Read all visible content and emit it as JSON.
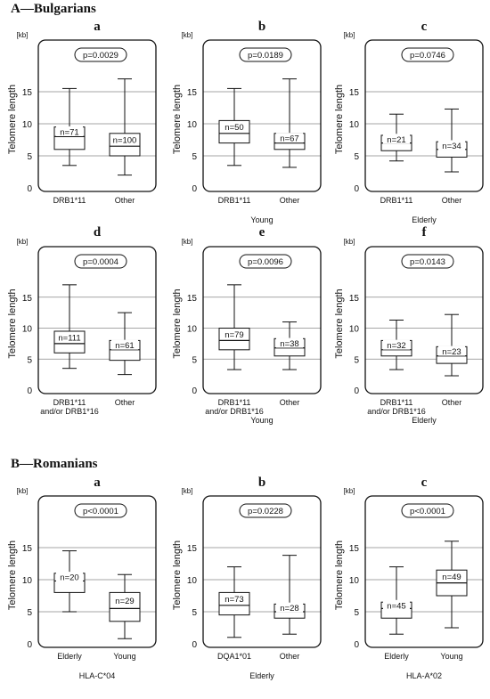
{
  "sections": [
    {
      "title": "A—Bulgarians"
    },
    {
      "title": "B—Romanians"
    }
  ],
  "common": {
    "ylabel": "Telomere length",
    "unit": "[kb]"
  },
  "chart_data": [
    {
      "letter": "a",
      "type": "box",
      "p_value": "p=0.0029",
      "xlabel": "",
      "ylim": [
        0,
        20
      ],
      "yticks": [
        0,
        5,
        10,
        15
      ],
      "boxes": [
        {
          "category": [
            "DRB1*11"
          ],
          "n_label": "n=71",
          "min": 3.5,
          "q1": 6.0,
          "median": 8.0,
          "q3": 9.5,
          "max": 15.5
        },
        {
          "category": [
            "Other"
          ],
          "n_label": "n=100",
          "min": 2.0,
          "q1": 5.0,
          "median": 6.5,
          "q3": 8.5,
          "max": 17.0
        }
      ]
    },
    {
      "letter": "b",
      "type": "box",
      "p_value": "p=0.0189",
      "xlabel": "Young",
      "ylim": [
        0,
        20
      ],
      "yticks": [
        0,
        5,
        10,
        15
      ],
      "boxes": [
        {
          "category": [
            "DRB1*11"
          ],
          "n_label": "n=50",
          "min": 3.5,
          "q1": 7.0,
          "median": 8.5,
          "q3": 10.5,
          "max": 15.5
        },
        {
          "category": [
            "Other"
          ],
          "n_label": "n=67",
          "min": 3.2,
          "q1": 6.0,
          "median": 7.0,
          "q3": 8.5,
          "max": 17.0
        }
      ]
    },
    {
      "letter": "c",
      "type": "box",
      "p_value": "p=0.0746",
      "xlabel": "Elderly",
      "ylim": [
        0,
        20
      ],
      "yticks": [
        0,
        5,
        10,
        15
      ],
      "boxes": [
        {
          "category": [
            "DRB1*11"
          ],
          "n_label": "n=21",
          "min": 4.2,
          "q1": 5.8,
          "median": 7.0,
          "q3": 8.2,
          "max": 11.5
        },
        {
          "category": [
            "Other"
          ],
          "n_label": "n=34",
          "min": 2.5,
          "q1": 4.8,
          "median": 6.0,
          "q3": 7.2,
          "max": 12.3
        }
      ]
    },
    {
      "letter": "d",
      "type": "box",
      "p_value": "p=0.0004",
      "xlabel": "",
      "ylim": [
        0,
        20
      ],
      "yticks": [
        0,
        5,
        10,
        15
      ],
      "boxes": [
        {
          "category": [
            "DRB1*11",
            "and/or DRB1*16"
          ],
          "n_label": "n=111",
          "min": 3.5,
          "q1": 6.0,
          "median": 7.5,
          "q3": 9.5,
          "max": 17.0
        },
        {
          "category": [
            "Other"
          ],
          "n_label": "n=61",
          "min": 2.5,
          "q1": 4.8,
          "median": 6.5,
          "q3": 8.0,
          "max": 12.5
        }
      ]
    },
    {
      "letter": "e",
      "type": "box",
      "p_value": "p=0.0096",
      "xlabel": "Young",
      "ylim": [
        0,
        20
      ],
      "yticks": [
        0,
        5,
        10,
        15
      ],
      "boxes": [
        {
          "category": [
            "DRB1*11",
            "and/or DRB1*16"
          ],
          "n_label": "n=79",
          "min": 3.3,
          "q1": 6.5,
          "median": 8.0,
          "q3": 10.0,
          "max": 17.0
        },
        {
          "category": [
            "Other"
          ],
          "n_label": "n=38",
          "min": 3.3,
          "q1": 5.5,
          "median": 6.8,
          "q3": 8.3,
          "max": 11.0
        }
      ]
    },
    {
      "letter": "f",
      "type": "box",
      "p_value": "p=0.0143",
      "xlabel": "Elderly",
      "ylim": [
        0,
        20
      ],
      "yticks": [
        0,
        5,
        10,
        15
      ],
      "boxes": [
        {
          "category": [
            "DRB1*11",
            "and/or DRB1*16"
          ],
          "n_label": "n=32",
          "min": 3.3,
          "q1": 5.5,
          "median": 6.5,
          "q3": 8.0,
          "max": 11.3
        },
        {
          "category": [
            "Other"
          ],
          "n_label": "n=23",
          "min": 2.3,
          "q1": 4.3,
          "median": 5.5,
          "q3": 7.0,
          "max": 12.2
        }
      ]
    },
    {
      "letter": "a",
      "type": "box",
      "p_value": "p<0.0001",
      "xlabel": "HLA-C*04",
      "ylim": [
        0,
        20
      ],
      "yticks": [
        0,
        5,
        10,
        15
      ],
      "boxes": [
        {
          "category": [
            "Elderly"
          ],
          "n_label": "n=20",
          "min": 5.0,
          "q1": 8.0,
          "median": 9.8,
          "q3": 11.0,
          "max": 14.5
        },
        {
          "category": [
            "Young"
          ],
          "n_label": "n=29",
          "min": 0.8,
          "q1": 3.5,
          "median": 5.5,
          "q3": 8.0,
          "max": 10.8
        }
      ]
    },
    {
      "letter": "b",
      "type": "box",
      "p_value": "p=0.0228",
      "xlabel": "Elderly",
      "ylim": [
        0,
        20
      ],
      "yticks": [
        0,
        5,
        10,
        15
      ],
      "boxes": [
        {
          "category": [
            "DQA1*01"
          ],
          "n_label": "n=73",
          "min": 1.0,
          "q1": 4.5,
          "median": 6.0,
          "q3": 8.0,
          "max": 12.0
        },
        {
          "category": [
            "Other"
          ],
          "n_label": "n=28",
          "min": 1.5,
          "q1": 4.0,
          "median": 5.0,
          "q3": 6.2,
          "max": 13.8
        }
      ]
    },
    {
      "letter": "c",
      "type": "box",
      "p_value": "p<0.0001",
      "xlabel": "HLA-A*02",
      "ylim": [
        0,
        20
      ],
      "yticks": [
        0,
        5,
        10,
        15
      ],
      "boxes": [
        {
          "category": [
            "Elderly"
          ],
          "n_label": "n=45",
          "min": 1.5,
          "q1": 4.0,
          "median": 5.5,
          "q3": 6.5,
          "max": 12.0
        },
        {
          "category": [
            "Young"
          ],
          "n_label": "n=49",
          "min": 2.5,
          "q1": 7.5,
          "median": 9.5,
          "q3": 11.5,
          "max": 16.0
        }
      ]
    }
  ]
}
